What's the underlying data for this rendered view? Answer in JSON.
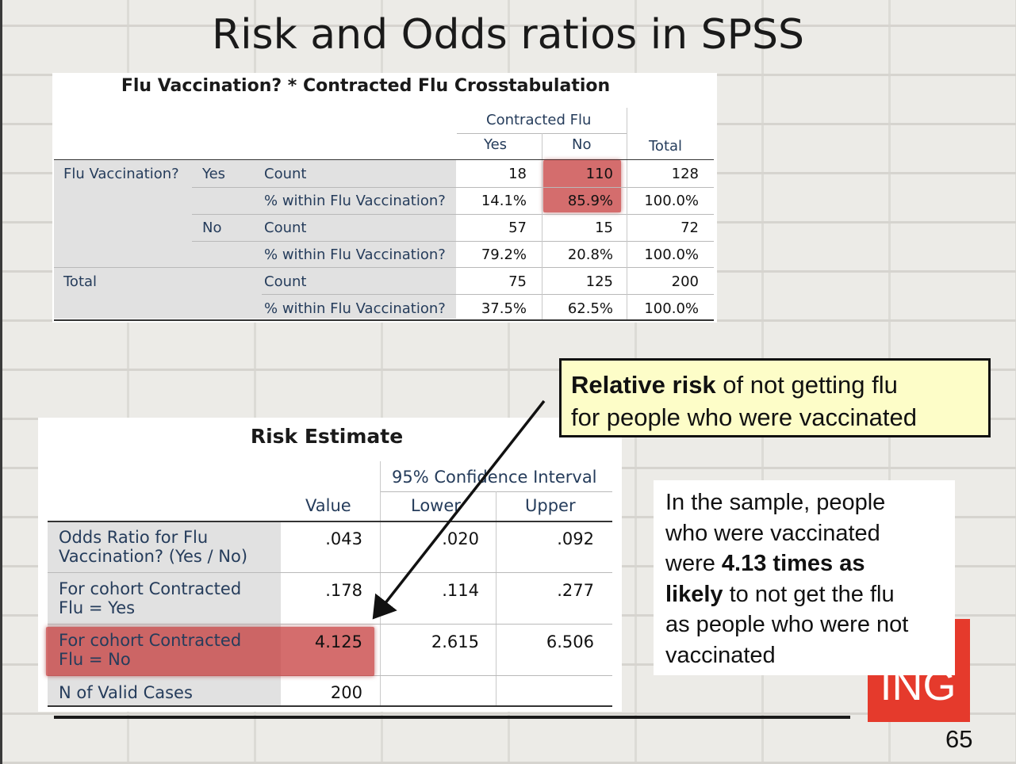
{
  "slide": {
    "title": "Risk and Odds ratios in SPSS",
    "page_number": "65",
    "logo_text": "ING"
  },
  "crosstab": {
    "title": "Flu Vaccination? * Contracted Flu Crosstabulation",
    "col_group": "Contracted Flu",
    "col_yes": "Yes",
    "col_no": "No",
    "col_total": "Total",
    "row_var": "Flu Vaccination?",
    "row_yes": "Yes",
    "row_no": "No",
    "row_total": "Total",
    "stat_count": "Count",
    "stat_pct": "% within Flu Vaccination?",
    "rows": [
      {
        "yes": "18",
        "no": "110",
        "total": "128"
      },
      {
        "yes": "14.1%",
        "no": "85.9%",
        "total": "100.0%"
      },
      {
        "yes": "57",
        "no": "15",
        "total": "72"
      },
      {
        "yes": "79.2%",
        "no": "20.8%",
        "total": "100.0%"
      },
      {
        "yes": "75",
        "no": "125",
        "total": "200"
      },
      {
        "yes": "37.5%",
        "no": "62.5%",
        "total": "100.0%"
      }
    ]
  },
  "risk": {
    "title": "Risk Estimate",
    "ci_header": "95% Confidence Interval",
    "col_value": "Value",
    "col_lower": "Lower",
    "col_upper": "Upper",
    "rows": [
      {
        "label1": "Odds Ratio for Flu",
        "label2": "Vaccination? (Yes / No)",
        "value": ".043",
        "lower": ".020",
        "upper": ".092"
      },
      {
        "label1": "For cohort Contracted",
        "label2": "Flu = Yes",
        "value": ".178",
        "lower": ".114",
        "upper": ".277"
      },
      {
        "label1": "For cohort Contracted",
        "label2": "Flu = No",
        "value": "4.125",
        "lower": "2.615",
        "upper": "6.506"
      },
      {
        "label1": "N of Valid Cases",
        "label2": "",
        "value": "200",
        "lower": "",
        "upper": ""
      }
    ]
  },
  "callout": {
    "bold": "Relative risk",
    "rest1": " of not getting flu",
    "line2": "for people who were vaccinated"
  },
  "note": {
    "l1": "In the sample, people",
    "l2": "who were vaccinated",
    "l3a": "were ",
    "l3b": "4.13 times as",
    "l4a": "likely",
    "l4b": " to not get the flu",
    "l5": "as people who were not",
    "l6": "vaccinated"
  },
  "colors": {
    "highlight": "#c43434",
    "callout_bg": "#fdfdc8",
    "logo_red": "#e53a2c",
    "spss_label": "#253c5b"
  }
}
